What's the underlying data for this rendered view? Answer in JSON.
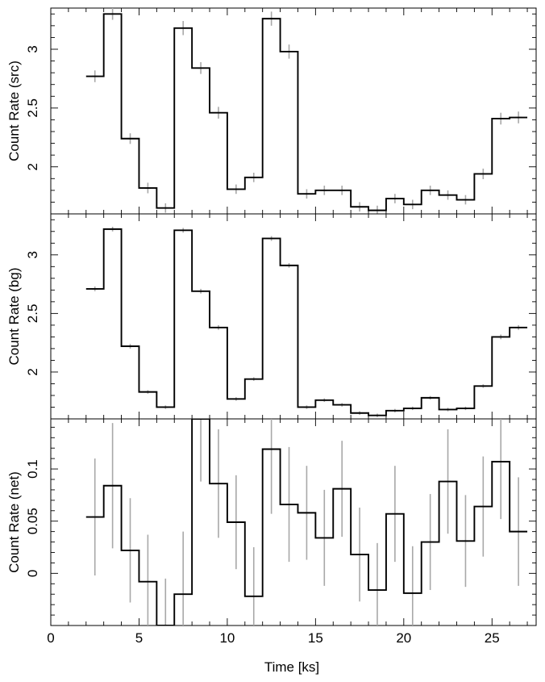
{
  "chart_data": {
    "type": "line",
    "drawstyle": "steps-mid",
    "x": [
      2.5,
      3.5,
      4.5,
      5.5,
      6.5,
      7.5,
      8.5,
      9.5,
      10.5,
      11.5,
      12.5,
      13.5,
      14.5,
      15.5,
      16.5,
      17.5,
      18.5,
      19.5,
      20.5,
      21.5,
      22.5,
      23.5,
      24.5,
      25.5,
      26.5
    ],
    "bin_width": 1,
    "xlabel": "Time [ks]",
    "xlim": [
      0,
      27.5
    ],
    "xticks": [
      0,
      5,
      10,
      15,
      20,
      25
    ],
    "xtick_labels": [
      "0",
      "5",
      "10",
      "15",
      "20",
      "25"
    ],
    "error_color": "#a8a8a8",
    "line_color": "#000000",
    "panels": [
      {
        "name": "src",
        "ylabel": "Count Rate (src)",
        "ylim": [
          1.6,
          3.35
        ],
        "yticks": [
          2,
          2.5,
          3
        ],
        "ytick_labels": [
          "2",
          "2.5",
          "3"
        ],
        "values": [
          2.77,
          3.3,
          2.24,
          1.82,
          1.65,
          3.18,
          2.84,
          2.46,
          1.81,
          1.91,
          3.26,
          2.98,
          1.77,
          1.8,
          1.8,
          1.66,
          1.63,
          1.73,
          1.68,
          1.8,
          1.76,
          1.72,
          1.94,
          2.41,
          2.42
        ],
        "errors": [
          0.05,
          0.05,
          0.045,
          0.045,
          0.04,
          0.06,
          0.05,
          0.05,
          0.04,
          0.04,
          0.06,
          0.06,
          0.04,
          0.04,
          0.04,
          0.04,
          0.04,
          0.04,
          0.04,
          0.04,
          0.04,
          0.04,
          0.045,
          0.05,
          0.05
        ]
      },
      {
        "name": "bg",
        "ylabel": "Count Rate (bg)",
        "ylim": [
          1.6,
          3.35
        ],
        "yticks": [
          2,
          2.5,
          3
        ],
        "ytick_labels": [
          "2",
          "2.5",
          "3"
        ],
        "values": [
          2.71,
          3.22,
          2.22,
          1.83,
          1.7,
          3.21,
          2.69,
          2.38,
          1.77,
          1.94,
          3.14,
          2.91,
          1.7,
          1.76,
          1.72,
          1.65,
          1.63,
          1.67,
          1.69,
          1.78,
          1.68,
          1.69,
          1.88,
          2.3,
          2.38
        ],
        "errors": [
          0.02,
          0.02,
          0.02,
          0.015,
          0.015,
          0.02,
          0.02,
          0.02,
          0.015,
          0.015,
          0.02,
          0.02,
          0.015,
          0.015,
          0.015,
          0.015,
          0.015,
          0.015,
          0.015,
          0.015,
          0.015,
          0.015,
          0.015,
          0.02,
          0.02
        ]
      },
      {
        "name": "net",
        "ylabel": "Count Rate (net)",
        "ylim": [
          -0.05,
          0.148
        ],
        "yticks": [
          0,
          0.05,
          0.1
        ],
        "ytick_labels": [
          "0",
          "0.05",
          "0.1"
        ],
        "values": [
          0.054,
          0.084,
          0.022,
          -0.008,
          -0.05,
          -0.02,
          0.148,
          0.086,
          0.049,
          -0.022,
          0.119,
          0.066,
          0.058,
          0.034,
          0.081,
          0.018,
          -0.016,
          0.057,
          -0.019,
          0.03,
          0.088,
          0.031,
          0.064,
          0.107,
          0.04
        ],
        "errors": [
          0.056,
          0.06,
          0.05,
          0.045,
          0.045,
          0.06,
          0.06,
          0.052,
          0.045,
          0.047,
          0.062,
          0.055,
          0.045,
          0.046,
          0.046,
          0.045,
          0.045,
          0.046,
          0.045,
          0.046,
          0.05,
          0.044,
          0.048,
          0.055,
          0.052
        ]
      }
    ]
  }
}
